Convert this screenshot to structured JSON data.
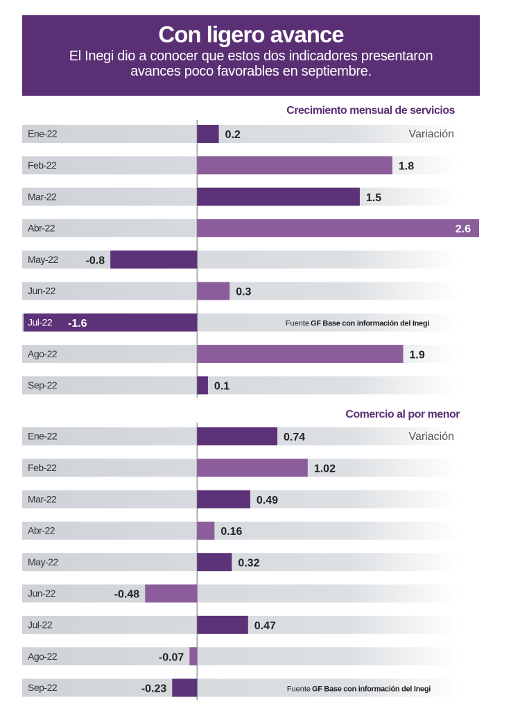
{
  "header": {
    "title": "Con ligero avance",
    "subtitle": "El Inegi dio a conocer que estos dos indicadores presentaron avances poco favorables en septiembre."
  },
  "chart_data": [
    {
      "type": "bar",
      "orientation": "horizontal",
      "title": "Crecimiento mensual de servicios",
      "value_axis_label": "Variación",
      "source_label": "Fuente",
      "source": "GF Base con información del Inegi",
      "categories": [
        "Ene-22",
        "Feb-22",
        "Mar-22",
        "Abr-22",
        "May-22",
        "Jun-22",
        "Jul-22",
        "Ago-22",
        "Sep-22"
      ],
      "values": [
        0.2,
        1.8,
        1.5,
        2.6,
        -0.8,
        0.3,
        -1.6,
        1.9,
        0.1
      ],
      "colors": [
        "#5c3278",
        "#8b5e9b"
      ],
      "xlim": [
        -1.6,
        2.6
      ]
    },
    {
      "type": "bar",
      "orientation": "horizontal",
      "title": "Comercio al por menor",
      "value_axis_label": "Variación",
      "source_label": "Fuente",
      "source": "GF Base con información del Inegi",
      "categories": [
        "Ene-22",
        "Feb-22",
        "Mar-22",
        "Abr-22",
        "May-22",
        "Jun-22",
        "Jul-22",
        "Ago-22",
        "Sep-22"
      ],
      "values": [
        0.74,
        1.02,
        0.49,
        0.16,
        0.32,
        -0.48,
        0.47,
        -0.07,
        -0.23
      ],
      "colors": [
        "#5c3278",
        "#8b5e9b"
      ],
      "xlim": [
        -1.6,
        2.6
      ]
    }
  ]
}
